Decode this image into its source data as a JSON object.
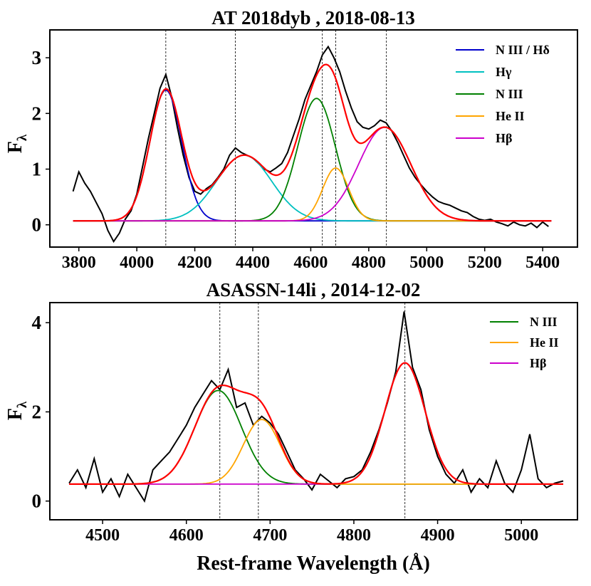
{
  "chart_data": [
    {
      "type": "line",
      "title": "AT 2018dyb , 2018-08-13",
      "ylabel": "F",
      "ylabel_sub": "λ",
      "xlabel": "",
      "xlim": [
        3700,
        5520
      ],
      "ylim": [
        -0.4,
        3.5
      ],
      "xticks": [
        3800,
        4000,
        4200,
        4400,
        4600,
        4800,
        5000,
        5200,
        5400
      ],
      "yticks": [
        0,
        1,
        2,
        3
      ],
      "vlines": [
        4100,
        4340,
        4640,
        4686,
        4861
      ],
      "baseline": 0.07,
      "observed": {
        "color": "#000000",
        "x": [
          3780,
          3800,
          3820,
          3840,
          3860,
          3880,
          3900,
          3920,
          3940,
          3960,
          3980,
          4000,
          4020,
          4040,
          4060,
          4080,
          4100,
          4120,
          4140,
          4160,
          4180,
          4200,
          4220,
          4240,
          4260,
          4280,
          4300,
          4320,
          4340,
          4360,
          4380,
          4400,
          4420,
          4440,
          4460,
          4480,
          4500,
          4520,
          4540,
          4560,
          4580,
          4600,
          4620,
          4640,
          4660,
          4680,
          4700,
          4720,
          4740,
          4760,
          4780,
          4800,
          4820,
          4840,
          4860,
          4880,
          4900,
          4920,
          4940,
          4960,
          4980,
          5000,
          5020,
          5040,
          5060,
          5080,
          5100,
          5120,
          5140,
          5160,
          5180,
          5200,
          5220,
          5240,
          5260,
          5280,
          5300,
          5320,
          5340,
          5360,
          5380,
          5400,
          5420
        ],
        "y": [
          0.6,
          0.95,
          0.75,
          0.6,
          0.4,
          0.2,
          -0.1,
          -0.3,
          -0.15,
          0.1,
          0.25,
          0.55,
          1.05,
          1.55,
          2.0,
          2.45,
          2.7,
          2.3,
          1.75,
          1.25,
          0.85,
          0.6,
          0.55,
          0.65,
          0.72,
          0.85,
          1.0,
          1.25,
          1.38,
          1.3,
          1.25,
          1.2,
          1.1,
          1.0,
          0.95,
          1.02,
          1.1,
          1.3,
          1.6,
          1.9,
          2.25,
          2.5,
          2.75,
          3.05,
          3.2,
          3.0,
          2.75,
          2.4,
          2.1,
          1.85,
          1.75,
          1.72,
          1.78,
          1.88,
          1.83,
          1.68,
          1.48,
          1.25,
          1.02,
          0.85,
          0.72,
          0.6,
          0.5,
          0.42,
          0.38,
          0.35,
          0.3,
          0.25,
          0.22,
          0.15,
          0.1,
          0.08,
          0.1,
          0.05,
          0.02,
          -0.02,
          0.05,
          0.0,
          -0.02,
          0.03,
          -0.05,
          0.05,
          -0.03
        ]
      },
      "components": [
        {
          "name": "N III / Hδ",
          "color": "#0000cc",
          "center": 4100,
          "amp": 2.35,
          "sigma": 55
        },
        {
          "name": "Hγ",
          "color": "#00c0c0",
          "center": 4370,
          "amp": 1.18,
          "sigma": 95
        },
        {
          "name": "N III",
          "color": "#008000",
          "center": 4620,
          "amp": 2.2,
          "sigma": 65
        },
        {
          "name": "He II",
          "color": "#ffa500",
          "center": 4686,
          "amp": 0.95,
          "sigma": 45
        },
        {
          "name": "Hβ",
          "color": "#cc00cc",
          "center": 4855,
          "amp": 1.68,
          "sigma": 90
        }
      ],
      "fit": {
        "color": "#ff0000",
        "x_range": [
          3780,
          5430
        ]
      },
      "legend": {
        "position": "top-right",
        "entries": [
          {
            "label": "N III / Hδ",
            "color": "#0000cc"
          },
          {
            "label": "Hγ",
            "color": "#00c0c0"
          },
          {
            "label": "N III",
            "color": "#008000"
          },
          {
            "label": "He II",
            "color": "#ffa500"
          },
          {
            "label": "Hβ",
            "color": "#cc00cc"
          }
        ]
      }
    },
    {
      "type": "line",
      "title": "ASASSN-14li , 2014-12-02",
      "ylabel": "F",
      "ylabel_sub": "λ",
      "xlabel": "Rest-frame Wavelength (Å)",
      "xlim": [
        4437,
        5067
      ],
      "ylim": [
        -0.42,
        4.45
      ],
      "xticks": [
        4500,
        4600,
        4700,
        4800,
        4900,
        5000
      ],
      "yticks": [
        0,
        2,
        4
      ],
      "vlines": [
        4640,
        4686,
        4861
      ],
      "baseline": 0.38,
      "observed": {
        "color": "#000000",
        "x": [
          4460,
          4470,
          4480,
          4490,
          4500,
          4510,
          4520,
          4530,
          4540,
          4550,
          4560,
          4570,
          4580,
          4590,
          4600,
          4610,
          4620,
          4630,
          4640,
          4650,
          4660,
          4670,
          4680,
          4690,
          4700,
          4710,
          4720,
          4730,
          4740,
          4750,
          4760,
          4770,
          4780,
          4790,
          4800,
          4810,
          4820,
          4830,
          4840,
          4850,
          4860,
          4870,
          4880,
          4890,
          4900,
          4910,
          4920,
          4930,
          4940,
          4950,
          4960,
          4970,
          4980,
          4990,
          5000,
          5010,
          5020,
          5030,
          5040,
          5050
        ],
        "y": [
          0.4,
          0.7,
          0.3,
          0.95,
          0.2,
          0.5,
          0.1,
          0.6,
          0.3,
          0.0,
          0.7,
          0.9,
          1.1,
          1.4,
          1.7,
          2.1,
          2.4,
          2.7,
          2.5,
          2.95,
          2.1,
          2.2,
          1.7,
          1.9,
          1.75,
          1.5,
          1.1,
          0.7,
          0.5,
          0.25,
          0.6,
          0.45,
          0.3,
          0.5,
          0.55,
          0.7,
          1.1,
          1.6,
          2.2,
          2.9,
          4.25,
          3.0,
          2.5,
          1.6,
          1.0,
          0.6,
          0.4,
          0.7,
          0.2,
          0.5,
          0.3,
          0.9,
          0.4,
          0.2,
          0.7,
          1.5,
          0.5,
          0.3,
          0.4,
          0.45
        ]
      },
      "components": [
        {
          "name": "N III",
          "color": "#008000",
          "center": 4638,
          "amp": 2.1,
          "sigma": 28
        },
        {
          "name": "He II",
          "color": "#ffa500",
          "center": 4690,
          "amp": 1.45,
          "sigma": 22
        },
        {
          "name": "Hβ",
          "color": "#cc00cc",
          "center": 4861,
          "amp": 2.72,
          "sigma": 24
        }
      ],
      "fit": {
        "color": "#ff0000",
        "x_range": [
          4460,
          5050
        ]
      },
      "legend": {
        "position": "top-right",
        "entries": [
          {
            "label": "N III",
            "color": "#008000"
          },
          {
            "label": "He II",
            "color": "#ffa500"
          },
          {
            "label": "Hβ",
            "color": "#cc00cc"
          }
        ]
      }
    }
  ]
}
